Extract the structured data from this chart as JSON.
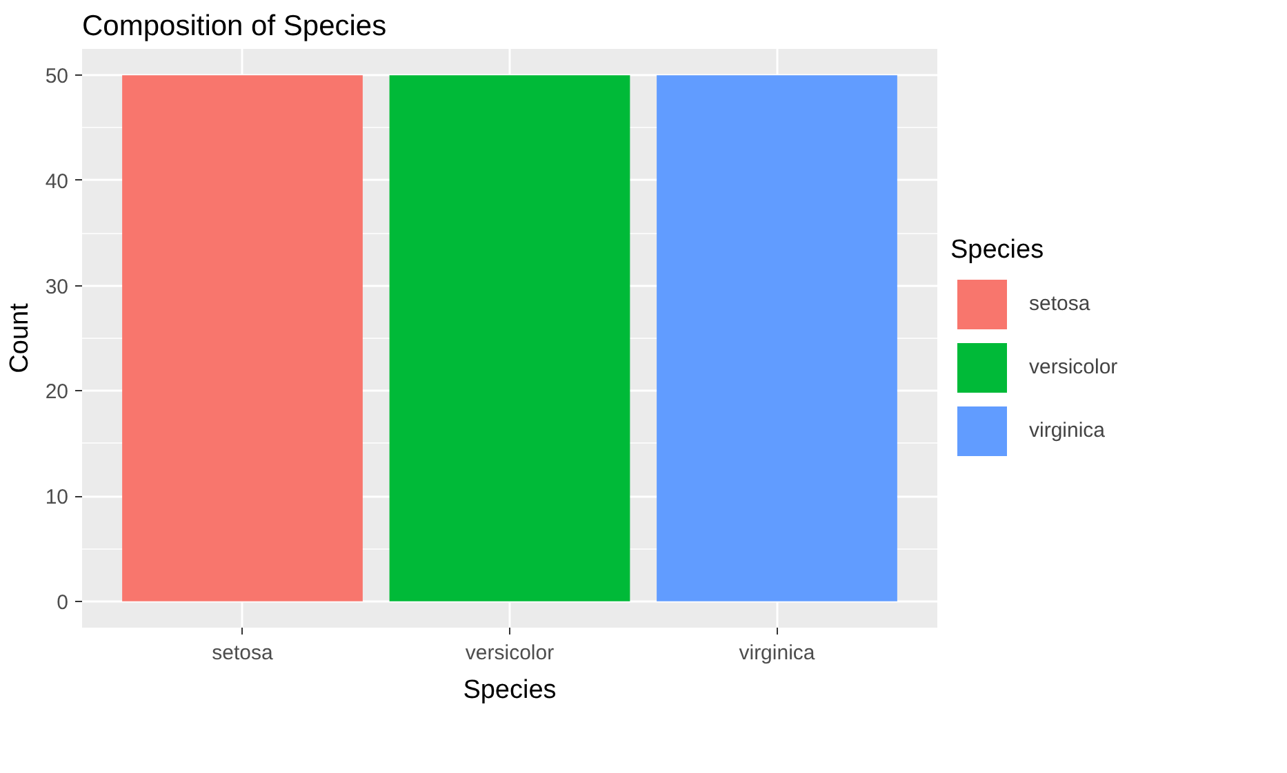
{
  "chart_data": {
    "type": "bar",
    "title": "Composition of Species",
    "xlabel": "Species",
    "ylabel": "Count",
    "legend_title": "Species",
    "categories": [
      "setosa",
      "versicolor",
      "virginica"
    ],
    "series": [
      {
        "name": "setosa",
        "color": "#f8766d",
        "values": [
          50,
          null,
          null
        ]
      },
      {
        "name": "versicolor",
        "color": "#00ba38",
        "values": [
          null,
          50,
          null
        ]
      },
      {
        "name": "virginica",
        "color": "#619cff",
        "values": [
          null,
          null,
          50
        ]
      }
    ],
    "ylim": [
      -2.5,
      52.5
    ],
    "yticks": [
      0,
      10,
      20,
      30,
      40,
      50
    ],
    "grid": true,
    "legend": "right"
  }
}
